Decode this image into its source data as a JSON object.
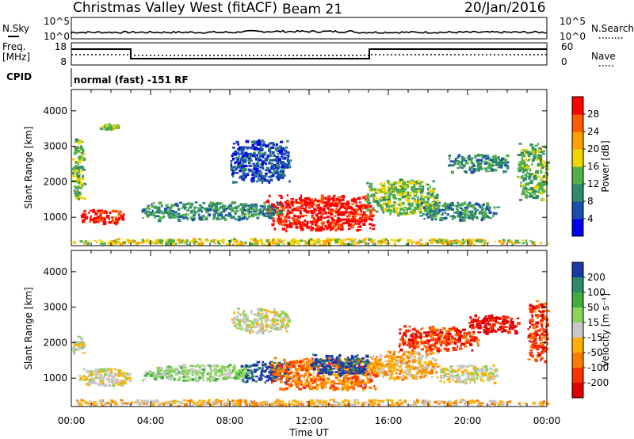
{
  "header": {
    "station": "Christmas Valley West (fitACF)",
    "beam": "Beam 21",
    "date": "20/Jan/2016"
  },
  "panels": {
    "nsky": {
      "label": "N.Sky",
      "tick_top": "10^5",
      "tick_bottom": "10^0"
    },
    "nsearch": {
      "label": "N.Search",
      "tick_top": "10^5",
      "tick_bottom": "10^0"
    },
    "freq": {
      "label_line1": "Freq.",
      "label_line2": "[MHz]",
      "tick_top": "18",
      "tick_bottom": "8"
    },
    "nave": {
      "label": "Nave",
      "tick_top": "60",
      "tick_bottom": "0"
    },
    "cpid": {
      "label": "CPID",
      "text": "normal (fast) -151 RF"
    }
  },
  "chart_data": [
    {
      "type": "heatmap",
      "panel": "power",
      "ylabel": "Slant Range [km]",
      "xlabel": "",
      "x_ticks": [
        "00:00",
        "04:00",
        "08:00",
        "12:00",
        "16:00",
        "20:00",
        "00:00"
      ],
      "y_ticks": [
        1000,
        2000,
        3000,
        4000
      ],
      "ylim": [
        200,
        4600
      ],
      "xlim_hours": [
        0,
        24
      ],
      "colorbar": {
        "label": "Power [dB]",
        "ticks": [
          "4",
          "8",
          "12",
          "16",
          "20",
          "24",
          "28"
        ],
        "colors": [
          "#0000ee",
          "#1a4db0",
          "#2f8a6a",
          "#53b048",
          "#f2d400",
          "#ff9f00",
          "#ff5a00",
          "#ff0000"
        ]
      },
      "regions": [
        {
          "t0": 0.4,
          "t1": 2.6,
          "r0": 850,
          "r1": 1250,
          "level": 7
        },
        {
          "t0": 9.8,
          "t1": 15.2,
          "r0": 650,
          "r1": 1650,
          "level": 7
        },
        {
          "t0": 3.5,
          "t1": 10.5,
          "r0": 950,
          "r1": 1450,
          "level": 2
        },
        {
          "t0": 14.8,
          "t1": 18.5,
          "r0": 1100,
          "r1": 2100,
          "level": 3
        },
        {
          "t0": 17.5,
          "t1": 21.5,
          "r0": 950,
          "r1": 1450,
          "level": 2
        },
        {
          "t0": 8.0,
          "t1": 11.0,
          "r0": 2000,
          "r1": 3200,
          "level": 1
        },
        {
          "t0": 19.0,
          "t1": 22.0,
          "r0": 2300,
          "r1": 2800,
          "level": 2
        },
        {
          "t0": 22.5,
          "t1": 24.0,
          "r0": 1500,
          "r1": 3100,
          "level": 3
        },
        {
          "t0": 0.0,
          "t1": 0.6,
          "r0": 1500,
          "r1": 3300,
          "level": 3
        },
        {
          "t0": 1.4,
          "t1": 2.4,
          "r0": 3500,
          "r1": 3650,
          "level": 3
        },
        {
          "t0": 0.0,
          "t1": 24.0,
          "r0": 250,
          "r1": 420,
          "level": 4
        }
      ]
    },
    {
      "type": "heatmap",
      "panel": "velocity",
      "ylabel": "Slant Range [km]",
      "xlabel": "Time UT",
      "x_ticks": [
        "00:00",
        "04:00",
        "08:00",
        "12:00",
        "16:00",
        "20:00",
        "00:00"
      ],
      "y_ticks": [
        1000,
        2000,
        3000,
        4000
      ],
      "ylim": [
        200,
        4600
      ],
      "xlim_hours": [
        0,
        24
      ],
      "colorbar": {
        "label": "Velocity [m s⁻¹]",
        "ticks": [
          "200",
          "100",
          "50",
          "15",
          "-15",
          "-50",
          "-100",
          "-200"
        ],
        "colors": [
          "#1a3aa8",
          "#2f8a6a",
          "#3fae3f",
          "#8bd45a",
          "#c8c8c8",
          "#ffb000",
          "#ff7a00",
          "#ff3000",
          "#e00000"
        ]
      },
      "regions": [
        {
          "t0": 0.3,
          "t1": 3.0,
          "r0": 800,
          "r1": 1300,
          "level": 4
        },
        {
          "t0": 8.5,
          "t1": 11.0,
          "r0": 900,
          "r1": 1500,
          "level": 0
        },
        {
          "t0": 10.0,
          "t1": 15.5,
          "r0": 700,
          "r1": 1600,
          "level": 6
        },
        {
          "t0": 12.0,
          "t1": 15.0,
          "r0": 1100,
          "r1": 1700,
          "level": 0
        },
        {
          "t0": 15.0,
          "t1": 18.5,
          "r0": 1000,
          "r1": 1800,
          "level": 5
        },
        {
          "t0": 18.5,
          "t1": 21.5,
          "r0": 900,
          "r1": 1400,
          "level": 4
        },
        {
          "t0": 3.5,
          "t1": 9.0,
          "r0": 950,
          "r1": 1400,
          "level": 3
        },
        {
          "t0": 16.5,
          "t1": 20.5,
          "r0": 1800,
          "r1": 2500,
          "level": 7
        },
        {
          "t0": 20.0,
          "t1": 22.5,
          "r0": 2300,
          "r1": 2800,
          "level": 8
        },
        {
          "t0": 23.0,
          "t1": 24.0,
          "r0": 1500,
          "r1": 3200,
          "level": 7
        },
        {
          "t0": 8.0,
          "t1": 11.0,
          "r0": 2300,
          "r1": 3000,
          "level": 4
        },
        {
          "t0": 0.0,
          "t1": 0.6,
          "r0": 1700,
          "r1": 2200,
          "level": 4
        },
        {
          "t0": 0.0,
          "t1": 24.0,
          "r0": 250,
          "r1": 420,
          "level": 5
        }
      ]
    }
  ]
}
